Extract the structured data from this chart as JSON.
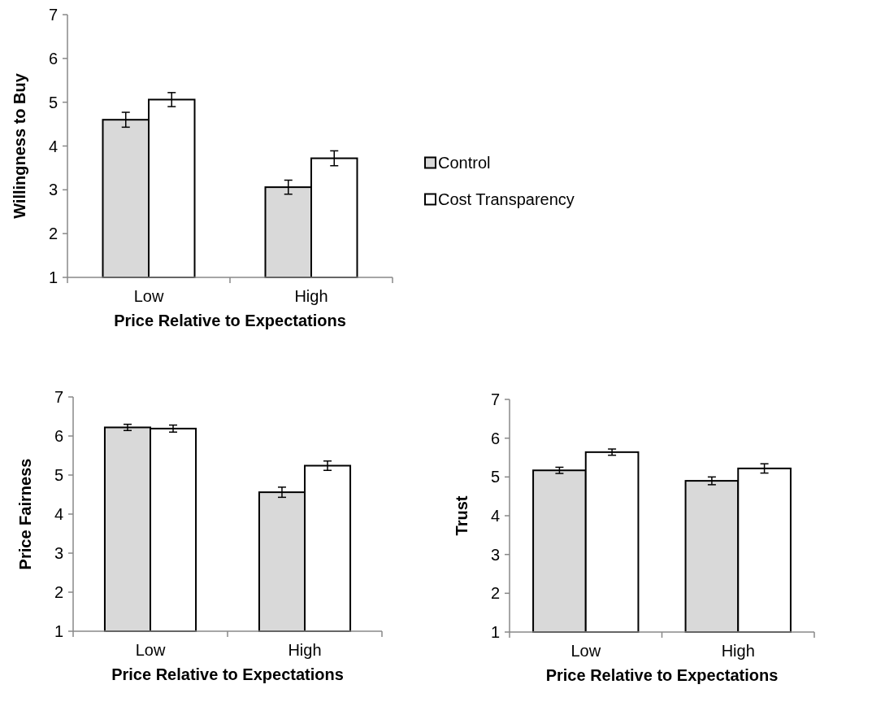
{
  "chart_data": [
    {
      "type": "bar",
      "xlabel": "Price Relative to Expectations",
      "ylabel": "Willingness to Buy",
      "categories": [
        "Low",
        "High"
      ],
      "series": [
        {
          "name": "Control",
          "color": "#d9d9d9",
          "values": [
            4.6,
            3.06
          ],
          "errors": [
            0.17,
            0.16
          ]
        },
        {
          "name": "Cost Transparency",
          "color": "#ffffff",
          "values": [
            5.06,
            3.72
          ],
          "errors": [
            0.16,
            0.17
          ]
        }
      ],
      "ylim": [
        1,
        7
      ],
      "yticks": [
        1,
        2,
        3,
        4,
        5,
        6,
        7
      ],
      "grid": false,
      "legend": "right"
    },
    {
      "type": "bar",
      "xlabel": "Price Relative to Expectations",
      "ylabel": "Price Fairness",
      "categories": [
        "Low",
        "High"
      ],
      "series": [
        {
          "color": "#d9d9d9",
          "values": [
            6.22,
            4.56
          ],
          "errors": [
            0.08,
            0.13
          ]
        },
        {
          "color": "#ffffff",
          "values": [
            6.19,
            5.24
          ],
          "errors": [
            0.09,
            0.12
          ]
        }
      ],
      "ylim": [
        1,
        7
      ],
      "yticks": [
        1,
        2,
        3,
        4,
        5,
        6,
        7
      ],
      "grid": false
    },
    {
      "type": "bar",
      "xlabel": "Price Relative to Expectations",
      "ylabel": "Trust",
      "categories": [
        "Low",
        "High"
      ],
      "series": [
        {
          "color": "#d9d9d9",
          "values": [
            5.17,
            4.9
          ],
          "errors": [
            0.08,
            0.1
          ]
        },
        {
          "color": "#ffffff",
          "values": [
            5.64,
            5.22
          ],
          "errors": [
            0.08,
            0.12
          ]
        }
      ],
      "ylim": [
        1,
        7
      ],
      "yticks": [
        1,
        2,
        3,
        4,
        5,
        6,
        7
      ],
      "grid": false
    }
  ]
}
